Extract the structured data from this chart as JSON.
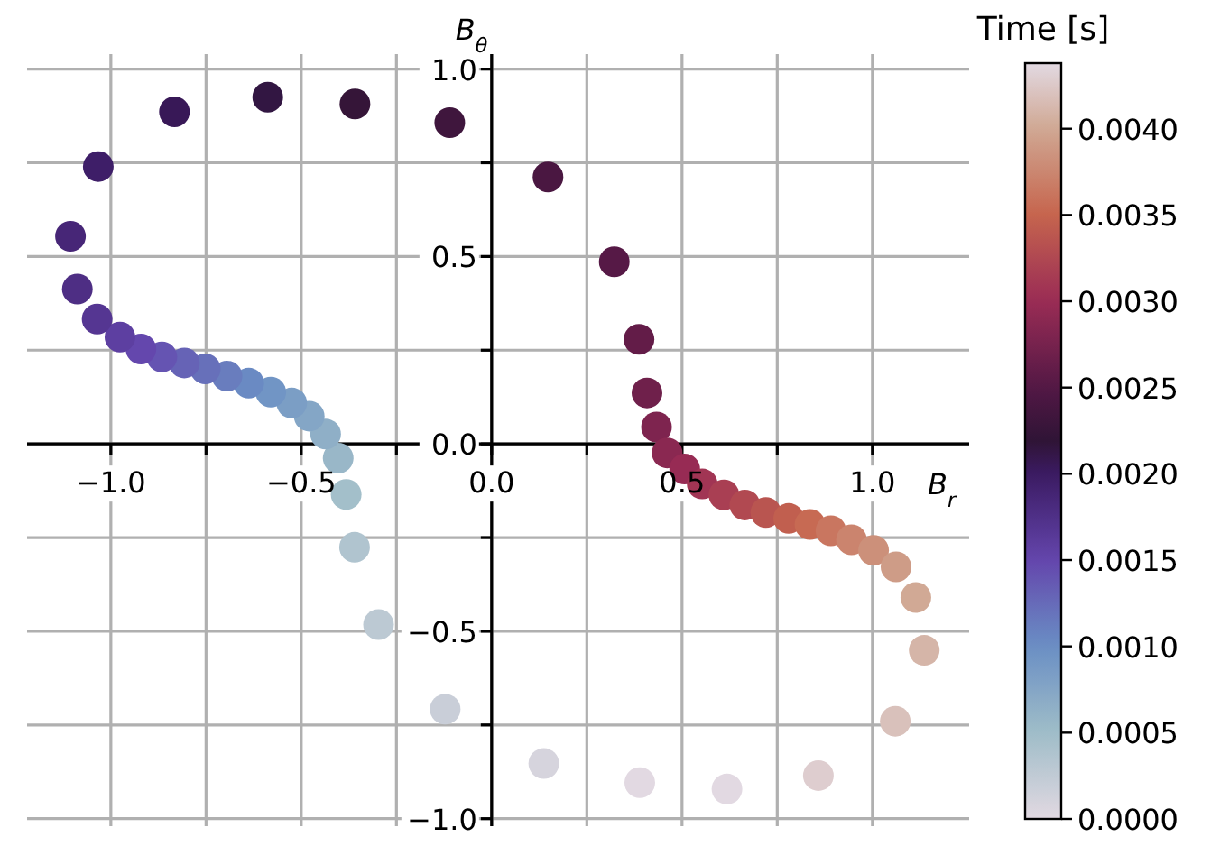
{
  "chart_data": {
    "type": "scatter",
    "xlabel": "B$_{r}$",
    "ylabel": "B$_{θ}$",
    "clabel": "Time [s]",
    "marker": "circle",
    "grid": true,
    "x": [
      0.389,
      0.137,
      -0.122,
      -0.297,
      -0.36,
      -0.382,
      -0.403,
      -0.436,
      -0.479,
      -0.525,
      -0.58,
      -0.638,
      -0.695,
      -0.752,
      -0.807,
      -0.866,
      -0.921,
      -0.976,
      -1.036,
      -1.088,
      -1.106,
      -1.033,
      -0.833,
      -0.588,
      -0.359,
      -0.11,
      0.148,
      0.322,
      0.387,
      0.408,
      0.433,
      0.461,
      0.507,
      0.553,
      0.61,
      0.665,
      0.72,
      0.78,
      0.836,
      0.891,
      0.945,
      1.003,
      1.062,
      1.114,
      1.136,
      1.06,
      0.858,
      0.618
    ],
    "values": [
      -0.904,
      -0.853,
      -0.708,
      -0.482,
      -0.276,
      -0.135,
      -0.038,
      0.026,
      0.074,
      0.109,
      0.138,
      0.162,
      0.181,
      0.2,
      0.216,
      0.232,
      0.253,
      0.285,
      0.333,
      0.413,
      0.554,
      0.74,
      0.886,
      0.925,
      0.907,
      0.857,
      0.712,
      0.486,
      0.279,
      0.136,
      0.045,
      -0.024,
      -0.067,
      -0.107,
      -0.136,
      -0.163,
      -0.183,
      -0.199,
      -0.215,
      -0.232,
      -0.256,
      -0.284,
      -0.328,
      -0.41,
      -0.551,
      -0.74,
      -0.885,
      -0.921
    ],
    "cvalues": [
      0,
      9e-05,
      0.00019,
      0.00028,
      0.00037,
      0.00047,
      0.00056,
      0.00065,
      0.00075,
      0.00084,
      0.00093,
      0.00103,
      0.00112,
      0.00121,
      0.0013,
      0.0014,
      0.00149,
      0.00158,
      0.00168,
      0.00177,
      0.00186,
      0.00196,
      0.00205,
      0.00214,
      0.00224,
      0.00233,
      0.00242,
      0.00252,
      0.00261,
      0.0027,
      0.0028,
      0.00289,
      0.00298,
      0.00308,
      0.00317,
      0.00326,
      0.00336,
      0.00345,
      0.00354,
      0.00363,
      0.00373,
      0.00382,
      0.00391,
      0.00401,
      0.0041,
      0.00419,
      0.00429,
      0.00438
    ],
    "xlim": [
      -1.22,
      1.254
    ],
    "ylim": [
      -1.02,
      1.04
    ],
    "xticks": [
      {
        "value": -1,
        "label": "−1.0"
      },
      {
        "value": -0.75,
        "label": null
      },
      {
        "value": -0.5,
        "label": "−0.5"
      },
      {
        "value": -0.25,
        "label": null
      },
      {
        "value": 0,
        "label": "0.0"
      },
      {
        "value": 0.25,
        "label": null
      },
      {
        "value": 0.5,
        "label": "0.5"
      },
      {
        "value": 0.75,
        "label": null
      },
      {
        "value": 1,
        "label": "1.0"
      }
    ],
    "yticks": [
      {
        "value": -1,
        "label": "−1.0"
      },
      {
        "value": -0.75,
        "label": null
      },
      {
        "value": -0.5,
        "label": "−0.5"
      },
      {
        "value": -0.25,
        "label": null
      },
      {
        "value": 0,
        "label": "0.0"
      },
      {
        "value": 0.25,
        "label": null
      },
      {
        "value": 0.5,
        "label": "0.5"
      },
      {
        "value": 0.75,
        "label": null
      },
      {
        "value": 1,
        "label": "1.0"
      }
    ],
    "clim": [
      0,
      0.00438
    ],
    "cticks": [
      {
        "value": 0,
        "label": "0.0000"
      },
      {
        "value": 0.0005,
        "label": "0.0005"
      },
      {
        "value": 0.001,
        "label": "0.0010"
      },
      {
        "value": 0.0015,
        "label": "0.0015"
      },
      {
        "value": 0.002,
        "label": "0.0020"
      },
      {
        "value": 0.0025,
        "label": "0.0025"
      },
      {
        "value": 0.003,
        "label": "0.0030"
      },
      {
        "value": 0.0035,
        "label": "0.0035"
      },
      {
        "value": 0.004,
        "label": "0.0040"
      }
    ]
  }
}
